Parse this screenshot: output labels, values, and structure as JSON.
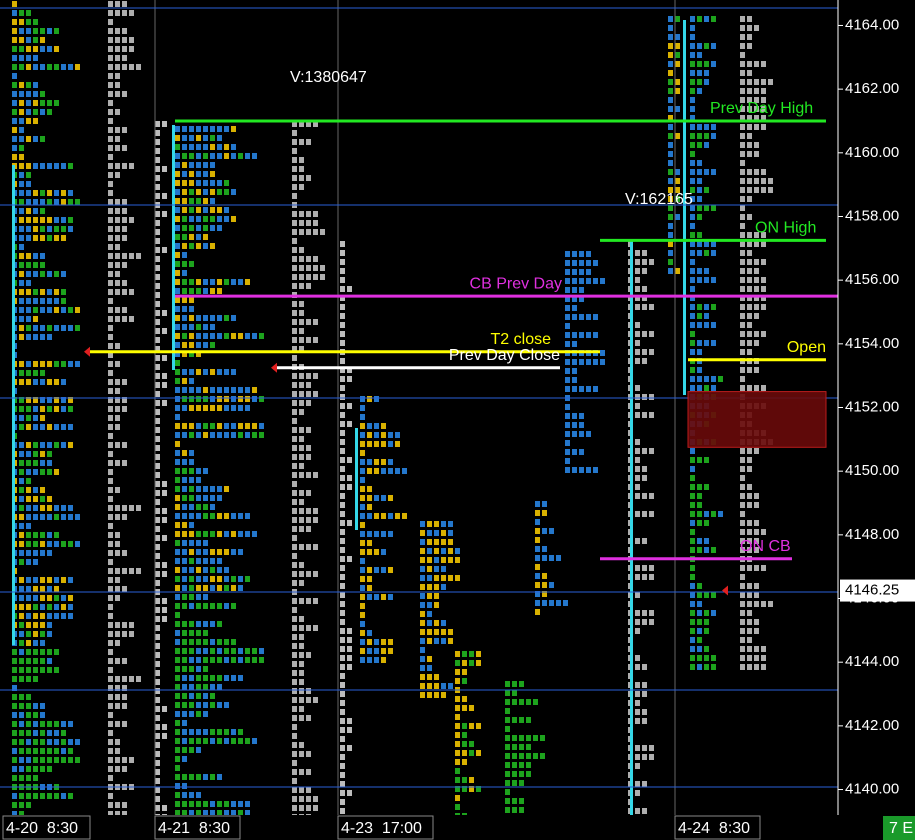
{
  "chart_data": {
    "type": "market-profile",
    "ylim": [
      4139.2,
      4164.8
    ],
    "yticks": [
      {
        "value": 4164,
        "label": "4164.00"
      },
      {
        "value": 4162,
        "label": "4162.00"
      },
      {
        "value": 4160,
        "label": "4160.00"
      },
      {
        "value": 4158,
        "label": "4158.00"
      },
      {
        "value": 4156,
        "label": "4156.00"
      },
      {
        "value": 4154,
        "label": "4154.00"
      },
      {
        "value": 4152,
        "label": "4152.00"
      },
      {
        "value": 4150,
        "label": "4150.00"
      },
      {
        "value": 4148,
        "label": "4148.00"
      },
      {
        "value": 4146,
        "label": "4146.00"
      },
      {
        "value": 4144,
        "label": "4144.00"
      },
      {
        "value": 4142,
        "label": "4142.00"
      },
      {
        "value": 4140,
        "label": "4140.00"
      }
    ],
    "levels": [
      {
        "name": "Prev Day High",
        "value": 4161,
        "color": "#22e822"
      },
      {
        "name": "ON High",
        "value": 4157.25,
        "color": "#22e822"
      },
      {
        "name": "CB Prev Day",
        "value": 4155.5,
        "color": "#e030e0"
      },
      {
        "name": "T2 close",
        "value": 4153.75,
        "color": "#ffff00"
      },
      {
        "name": "Prev Day Close",
        "value": 4153.25,
        "color": "#ffffff"
      },
      {
        "name": "Open",
        "value": 4153.5,
        "color": "#ffff00"
      },
      {
        "name": "ON CB",
        "value": 4147.25,
        "color": "#e030e0"
      }
    ],
    "zone": {
      "from": 4152.5,
      "to": 4150.75,
      "color": "#6a0a0a"
    },
    "volumes": [
      "V:1380647",
      "V:162165"
    ],
    "last_price": {
      "value": 4146.25,
      "label": "4146.25"
    },
    "sessions": [
      "4-20  8:30",
      "4-21  8:30",
      "4-23  17:00",
      "4-24  8:30"
    ],
    "corner": "7 E"
  }
}
